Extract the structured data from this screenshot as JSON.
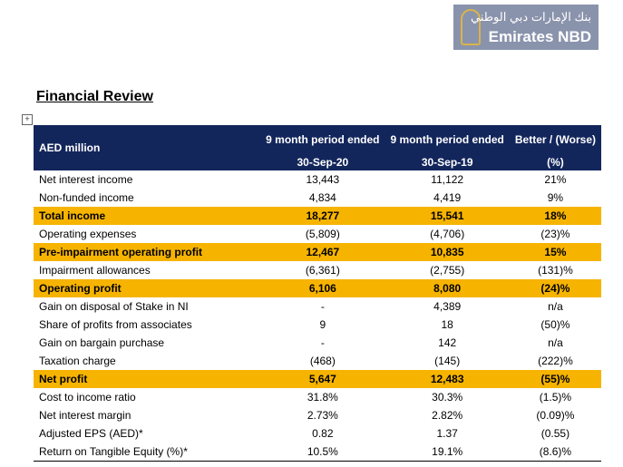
{
  "logo": {
    "arabic": "بنك الإمارات دبي الوطني",
    "name": "Emirates NBD"
  },
  "header": {
    "title": "Financial Review"
  },
  "table": {
    "corner": "AED million",
    "columns": [
      {
        "heading": "9 month period ended",
        "sub": "30-Sep-20"
      },
      {
        "heading": "9 month period ended",
        "sub": "30-Sep-19"
      },
      {
        "heading": "Better / (Worse)",
        "sub": "(%)"
      }
    ],
    "rows": [
      {
        "label": "Net interest income",
        "cells": [
          "13,443",
          "11,122",
          "21%"
        ]
      },
      {
        "label": "Non-funded income",
        "cells": [
          "4,834",
          "4,419",
          "9%"
        ]
      },
      {
        "label": "Total income",
        "cells": [
          "18,277",
          "15,541",
          "18%"
        ],
        "highlight": true
      },
      {
        "label": "Operating expenses",
        "cells": [
          "(5,809)",
          "(4,706)",
          "(23)%"
        ]
      },
      {
        "label": "Pre-impairment operating profit",
        "cells": [
          "12,467",
          "10,835",
          "15%"
        ],
        "highlight": true
      },
      {
        "label": "Impairment allowances",
        "cells": [
          "(6,361)",
          "(2,755)",
          "(131)%"
        ]
      },
      {
        "label": "Operating profit",
        "cells": [
          "6,106",
          "8,080",
          "(24)%"
        ],
        "highlight": true
      },
      {
        "label": "Gain on disposal of Stake in NI",
        "cells": [
          "-",
          "4,389",
          "n/a"
        ]
      },
      {
        "label": "Share of profits from associates",
        "cells": [
          "9",
          "18",
          "(50)%"
        ]
      },
      {
        "label": "Gain on bargain purchase",
        "cells": [
          "-",
          "142",
          "n/a"
        ]
      },
      {
        "label": "Taxation charge",
        "cells": [
          "(468)",
          "(145)",
          "(222)%"
        ]
      },
      {
        "label": "Net profit",
        "cells": [
          "5,647",
          "12,483",
          "(55)%"
        ],
        "highlight": true
      },
      {
        "label": "Cost to income ratio",
        "cells": [
          "31.8%",
          "30.3%",
          "(1.5)%"
        ]
      },
      {
        "label": "Net interest margin",
        "cells": [
          "2.73%",
          "2.82%",
          "(0.09)%"
        ]
      },
      {
        "label": "Adjusted EPS (AED)*",
        "cells": [
          "0.82",
          "1.37",
          "(0.55)"
        ]
      },
      {
        "label": "Return on Tangible Equity (%)*",
        "cells": [
          "10.5%",
          "19.1%",
          "(8.6)%"
        ]
      }
    ]
  }
}
